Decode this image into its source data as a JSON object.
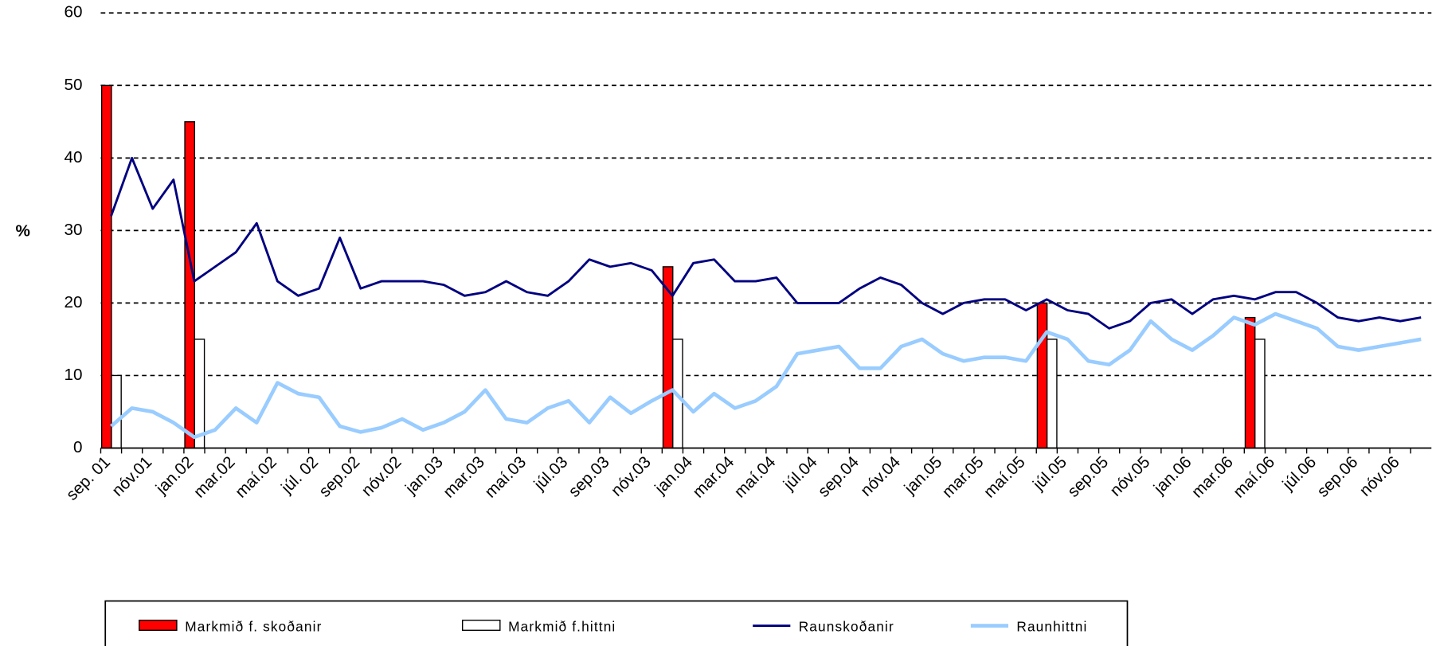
{
  "chart_data": {
    "type": "bar",
    "y_label": "%",
    "categories": [
      "sep. 01",
      null,
      "nóv.01",
      null,
      "jan.02",
      null,
      "mar.02",
      null,
      "maí.02",
      null,
      "júl. 02",
      null,
      "sep.02",
      null,
      "nóv.02",
      null,
      "jan.03",
      null,
      "mar.03",
      null,
      "maí.03",
      null,
      "júl.03",
      null,
      "sep.03",
      null,
      "nóv.03",
      null,
      "jan.04",
      null,
      "mar.04",
      null,
      "maí.04",
      null,
      "júl.04",
      null,
      "sep.04",
      null,
      "nóv.04",
      null,
      "jan.05",
      null,
      "mar.05",
      null,
      "maí.05",
      null,
      "júl.05",
      null,
      "sep.05",
      null,
      "nóv.05",
      null,
      "jan.06",
      null,
      "mar.06",
      null,
      "maí.06",
      null,
      "júl.06",
      null,
      "sep.06",
      null,
      "nóv.06",
      null
    ],
    "series": [
      {
        "name": "Markmið f. skoðanir",
        "type": "bar",
        "color": "#ff0000",
        "values": [
          50,
          null,
          null,
          null,
          45,
          null,
          null,
          null,
          null,
          null,
          null,
          null,
          null,
          null,
          null,
          null,
          null,
          null,
          null,
          null,
          null,
          null,
          null,
          null,
          null,
          null,
          null,
          25,
          null,
          null,
          null,
          null,
          null,
          null,
          null,
          null,
          null,
          null,
          null,
          null,
          null,
          null,
          null,
          null,
          null,
          20,
          null,
          null,
          null,
          null,
          null,
          null,
          null,
          null,
          null,
          18,
          null,
          null,
          null,
          null,
          null,
          null,
          null,
          null
        ]
      },
      {
        "name": "Markmið f.hittni",
        "type": "bar",
        "color": "#ffffff",
        "values": [
          10,
          null,
          null,
          null,
          15,
          null,
          null,
          null,
          null,
          null,
          null,
          null,
          null,
          null,
          null,
          null,
          null,
          null,
          null,
          null,
          null,
          null,
          null,
          null,
          null,
          null,
          null,
          15,
          null,
          null,
          null,
          null,
          null,
          null,
          null,
          null,
          null,
          null,
          null,
          null,
          null,
          null,
          null,
          null,
          null,
          15,
          null,
          null,
          null,
          null,
          null,
          null,
          null,
          null,
          null,
          15,
          null,
          null,
          null,
          null,
          null,
          null,
          null,
          null
        ]
      },
      {
        "name": "Raunskoðanir",
        "type": "line",
        "color": "#000080",
        "values": [
          32,
          40,
          33,
          37,
          23,
          25,
          27,
          31,
          23,
          21,
          22,
          29,
          22,
          23,
          23,
          23,
          22.5,
          21,
          21.5,
          23,
          21.5,
          21,
          23,
          26,
          25,
          25.5,
          24.5,
          21,
          25.5,
          26,
          23,
          23,
          23.5,
          20,
          20,
          20,
          22,
          23.5,
          22.5,
          20,
          18.5,
          20,
          20.5,
          20.5,
          19,
          20.5,
          19,
          18.5,
          16.5,
          17.5,
          20,
          20.5,
          18.5,
          20.5,
          21,
          20.5,
          21.5,
          21.5,
          20,
          18,
          17.5,
          18,
          17.5,
          18
        ]
      },
      {
        "name": "Raunhittni",
        "type": "line",
        "color": "#99ccff",
        "values": [
          3,
          5.5,
          5,
          3.5,
          1.5,
          2.5,
          5.5,
          3.5,
          9,
          7.5,
          7,
          3,
          2.2,
          2.8,
          4,
          2.5,
          3.5,
          5,
          8,
          4,
          3.5,
          5.5,
          6.5,
          3.5,
          7,
          4.8,
          6.5,
          8,
          5,
          7.5,
          5.5,
          6.5,
          8.5,
          13,
          13.5,
          14,
          11,
          11,
          14,
          15,
          13,
          12,
          12.5,
          12.5,
          12,
          16,
          15,
          12,
          11.5,
          13.5,
          17.5,
          15,
          13.5,
          15.5,
          18,
          17,
          18.5,
          17.5,
          16.5,
          14,
          13.5,
          14,
          14.5,
          15
        ]
      }
    ],
    "ylim": [
      0,
      60
    ],
    "yticks": [
      0,
      10,
      20,
      30,
      40,
      50,
      60
    ],
    "grid": true
  }
}
